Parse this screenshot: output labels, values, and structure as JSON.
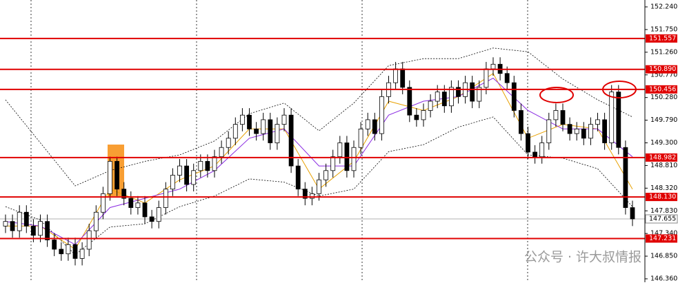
{
  "chart_data": {
    "type": "candlestick",
    "open": [
      147.5,
      147.6,
      147.4,
      147.8,
      147.5,
      147.3,
      147.6,
      147.2,
      147.0,
      146.9,
      147.1,
      146.8,
      147.0,
      147.4,
      147.8,
      148.2,
      148.9,
      148.3,
      148.1,
      147.9,
      148.0,
      147.7,
      147.6,
      147.9,
      148.3,
      148.6,
      148.8,
      148.4,
      148.7,
      148.9,
      148.7,
      149.0,
      149.2,
      149.4,
      149.7,
      149.9,
      149.6,
      149.5,
      149.8,
      149.3,
      149.7,
      149.9,
      148.8,
      148.3,
      148.1,
      148.2,
      148.5,
      148.7,
      149.0,
      149.3,
      148.7,
      149.2,
      149.6,
      149.8,
      149.5,
      150.3,
      150.6,
      150.9,
      150.5,
      149.9,
      149.8,
      150.0,
      150.2,
      150.4,
      150.1,
      150.5,
      150.3,
      150.6,
      150.2,
      150.5,
      150.9,
      151.0,
      150.8,
      150.6,
      150.0,
      149.5,
      149.1,
      149.0,
      149.3,
      149.8,
      150.0,
      149.7,
      149.5,
      149.6,
      149.4,
      149.7,
      149.8,
      149.3,
      150.4,
      149.2,
      147.9
    ],
    "high": [
      147.75,
      147.75,
      147.95,
      147.95,
      147.65,
      147.75,
      147.75,
      147.35,
      147.15,
      147.25,
      147.25,
      147.15,
      147.55,
      147.95,
      148.35,
      149.0,
      149.0,
      148.45,
      148.25,
      148.15,
      148.15,
      147.85,
      148.05,
      148.45,
      148.75,
      148.95,
      148.95,
      148.85,
      149.05,
      149.05,
      149.15,
      149.35,
      149.55,
      149.85,
      150.05,
      150.05,
      149.75,
      149.95,
      149.95,
      149.85,
      150.05,
      150.05,
      148.95,
      148.45,
      148.35,
      148.65,
      148.85,
      149.15,
      149.45,
      149.45,
      149.35,
      149.75,
      149.95,
      149.95,
      150.45,
      150.75,
      151.05,
      151.05,
      150.65,
      150.05,
      150.15,
      150.35,
      150.55,
      150.55,
      150.65,
      150.65,
      150.75,
      150.75,
      150.65,
      151.05,
      151.15,
      151.15,
      150.95,
      150.75,
      150.15,
      149.65,
      149.25,
      149.45,
      149.95,
      150.15,
      150.15,
      149.85,
      149.75,
      149.75,
      149.85,
      149.95,
      149.95,
      150.55,
      150.55,
      149.35,
      148.05
    ],
    "low": [
      147.35,
      147.25,
      147.25,
      147.35,
      147.15,
      147.15,
      147.05,
      146.85,
      146.75,
      146.75,
      146.65,
      146.65,
      146.85,
      147.25,
      147.65,
      148.05,
      148.15,
      147.95,
      147.75,
      147.75,
      147.55,
      147.45,
      147.45,
      147.75,
      148.15,
      148.45,
      148.25,
      148.25,
      148.55,
      148.55,
      148.55,
      148.85,
      149.05,
      149.25,
      149.55,
      149.45,
      149.35,
      149.35,
      149.15,
      149.15,
      149.55,
      148.65,
      148.15,
      147.95,
      147.95,
      148.05,
      148.35,
      148.55,
      148.85,
      148.55,
      148.55,
      149.05,
      149.45,
      149.35,
      149.35,
      150.15,
      150.45,
      150.35,
      149.75,
      149.65,
      149.65,
      149.85,
      150.05,
      149.95,
      149.95,
      150.15,
      150.15,
      150.05,
      150.05,
      150.35,
      150.75,
      150.65,
      150.45,
      149.85,
      149.35,
      148.95,
      148.85,
      148.85,
      149.15,
      149.65,
      149.55,
      149.35,
      149.35,
      149.25,
      149.25,
      149.55,
      149.15,
      149.15,
      149.05,
      147.75,
      147.5
    ],
    "close": [
      147.6,
      147.4,
      147.8,
      147.5,
      147.3,
      147.6,
      147.2,
      147.0,
      146.9,
      147.1,
      146.8,
      147.0,
      147.4,
      147.8,
      148.2,
      148.9,
      148.3,
      148.1,
      147.9,
      148.0,
      147.7,
      147.6,
      147.9,
      148.3,
      148.6,
      148.8,
      148.4,
      148.7,
      148.9,
      148.7,
      149.0,
      149.2,
      149.4,
      149.7,
      149.9,
      149.6,
      149.5,
      149.8,
      149.3,
      149.7,
      149.9,
      148.8,
      148.3,
      148.1,
      148.2,
      148.5,
      148.7,
      149.0,
      149.3,
      148.7,
      149.2,
      149.6,
      149.8,
      149.5,
      150.3,
      150.6,
      150.9,
      150.5,
      149.9,
      149.8,
      150.0,
      150.2,
      150.4,
      150.1,
      150.5,
      150.3,
      150.6,
      150.2,
      150.5,
      150.9,
      151.0,
      150.8,
      150.6,
      150.0,
      149.5,
      149.1,
      149.0,
      149.3,
      149.8,
      150.0,
      149.7,
      149.5,
      149.6,
      149.4,
      149.7,
      149.8,
      149.3,
      150.4,
      149.2,
      147.9,
      147.655
    ],
    "up_color": "#ffffff",
    "down_color": "#000000",
    "wick_color": "#000000",
    "lines": [
      {
        "name": "bb-upper",
        "color": "#000000",
        "dash": true,
        "x": [
          0,
          5,
          10,
          15,
          20,
          25,
          30,
          35,
          40,
          45,
          50,
          55,
          60,
          65,
          70,
          75,
          80,
          85,
          90
        ],
        "values": [
          150.23,
          149.3,
          148.37,
          148.7,
          148.9,
          149.04,
          149.34,
          149.93,
          150.16,
          149.56,
          150.16,
          150.97,
          151.12,
          151.12,
          151.35,
          151.27,
          150.68,
          150.23,
          149.86
        ]
      },
      {
        "name": "bb-lower",
        "color": "#000000",
        "dash": true,
        "x": [
          0,
          5,
          10,
          15,
          20,
          25,
          30,
          35,
          40,
          45,
          50,
          55,
          60,
          65,
          70,
          75,
          80,
          85,
          90
        ],
        "values": [
          147.92,
          147.63,
          146.88,
          147.48,
          147.55,
          147.92,
          148.15,
          148.52,
          148.45,
          148.15,
          148.3,
          149.11,
          149.26,
          149.64,
          149.86,
          149.04,
          148.97,
          148.74,
          147.92
        ]
      },
      {
        "name": "ma-fast",
        "color": "#e8a000",
        "dash": false,
        "x": [
          0,
          5,
          10,
          15,
          20,
          25,
          30,
          35,
          40,
          45,
          50,
          55,
          60,
          65,
          70,
          75,
          80,
          85,
          90
        ],
        "values": [
          147.5,
          147.5,
          147.0,
          148.3,
          148.0,
          148.5,
          148.8,
          149.6,
          149.6,
          148.3,
          148.9,
          150.2,
          150.0,
          150.3,
          150.8,
          149.4,
          149.7,
          149.6,
          148.3
        ]
      },
      {
        "name": "ma-slow",
        "color": "#8a2be2",
        "dash": false,
        "x": [
          0,
          5,
          10,
          15,
          20,
          25,
          30,
          35,
          40,
          45,
          50,
          55,
          60,
          65,
          70,
          75,
          80,
          85,
          90
        ],
        "values": [
          147.6,
          147.5,
          147.1,
          147.9,
          148.1,
          148.3,
          148.7,
          149.4,
          149.6,
          148.8,
          148.8,
          149.9,
          150.2,
          150.3,
          150.7,
          150.0,
          149.6,
          149.6,
          149.0
        ]
      }
    ],
    "levels": [
      {
        "value": 151.557,
        "label": "151.557"
      },
      {
        "value": 150.89,
        "label": "150.890"
      },
      {
        "value": 150.456,
        "label": "150.456"
      },
      {
        "value": 148.982,
        "label": "148.982"
      },
      {
        "value": 148.13,
        "label": "148.130"
      },
      {
        "value": 147.231,
        "label": "147.231"
      }
    ],
    "level_color": "#e00000",
    "current_price": {
      "value": 147.655,
      "label": "147.655"
    },
    "ylim": [
      146.36,
      152.24
    ],
    "yticks": [
      {
        "value": 146.36,
        "label": "146.360"
      },
      {
        "value": 146.85,
        "label": "146.850"
      },
      {
        "value": 147.34,
        "label": "147.340"
      },
      {
        "value": 147.83,
        "label": "147.830"
      },
      {
        "value": 148.32,
        "label": "148.320"
      },
      {
        "value": 148.81,
        "label": "148.810"
      },
      {
        "value": 149.3,
        "label": "149.300"
      },
      {
        "value": 149.79,
        "label": "149.790"
      },
      {
        "value": 150.28,
        "label": "150.280"
      },
      {
        "value": 150.77,
        "label": "150.770"
      },
      {
        "value": 151.26,
        "label": "151.260"
      },
      {
        "value": 151.75,
        "label": "151.750"
      },
      {
        "value": 152.24,
        "label": "152.240"
      }
    ],
    "watermark": "公众号 · 许大叔情报"
  }
}
